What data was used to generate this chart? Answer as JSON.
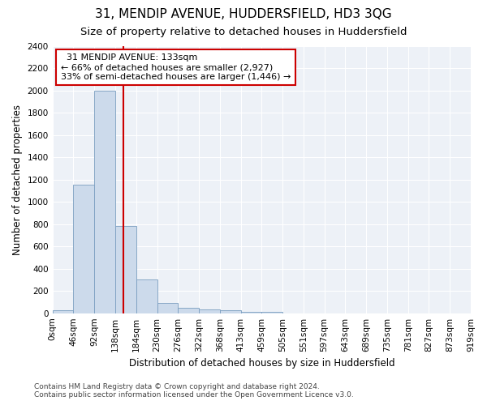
{
  "title": "31, MENDIP AVENUE, HUDDERSFIELD, HD3 3QG",
  "subtitle": "Size of property relative to detached houses in Huddersfield",
  "xlabel": "Distribution of detached houses by size in Huddersfield",
  "ylabel": "Number of detached properties",
  "footer_line1": "Contains HM Land Registry data © Crown copyright and database right 2024.",
  "footer_line2": "Contains public sector information licensed under the Open Government Licence v3.0.",
  "bin_labels": [
    "0sqm",
    "46sqm",
    "92sqm",
    "138sqm",
    "184sqm",
    "230sqm",
    "276sqm",
    "322sqm",
    "368sqm",
    "413sqm",
    "459sqm",
    "505sqm",
    "551sqm",
    "597sqm",
    "643sqm",
    "689sqm",
    "735sqm",
    "781sqm",
    "827sqm",
    "873sqm",
    "919sqm"
  ],
  "bar_values": [
    30,
    1150,
    2000,
    780,
    300,
    95,
    50,
    35,
    25,
    10,
    15,
    0,
    0,
    0,
    0,
    0,
    0,
    0,
    0,
    0
  ],
  "ylim": [
    0,
    2400
  ],
  "yticks": [
    0,
    200,
    400,
    600,
    800,
    1000,
    1200,
    1400,
    1600,
    1800,
    2000,
    2200,
    2400
  ],
  "bar_color": "#ccdaeb",
  "bar_edgecolor": "#7a9ec0",
  "annotation_line1": "  31 MENDIP AVENUE: 133sqm",
  "annotation_line2": "← 66% of detached houses are smaller (2,927)",
  "annotation_line3": "33% of semi-detached houses are larger (1,446) →",
  "vline_x": 2.87,
  "vline_color": "#cc0000",
  "box_color": "#cc0000",
  "background_color": "#edf1f7",
  "grid_color": "#ffffff",
  "title_fontsize": 11,
  "subtitle_fontsize": 9.5,
  "axis_label_fontsize": 8.5,
  "tick_fontsize": 7.5,
  "annotation_fontsize": 8,
  "footer_fontsize": 6.5
}
